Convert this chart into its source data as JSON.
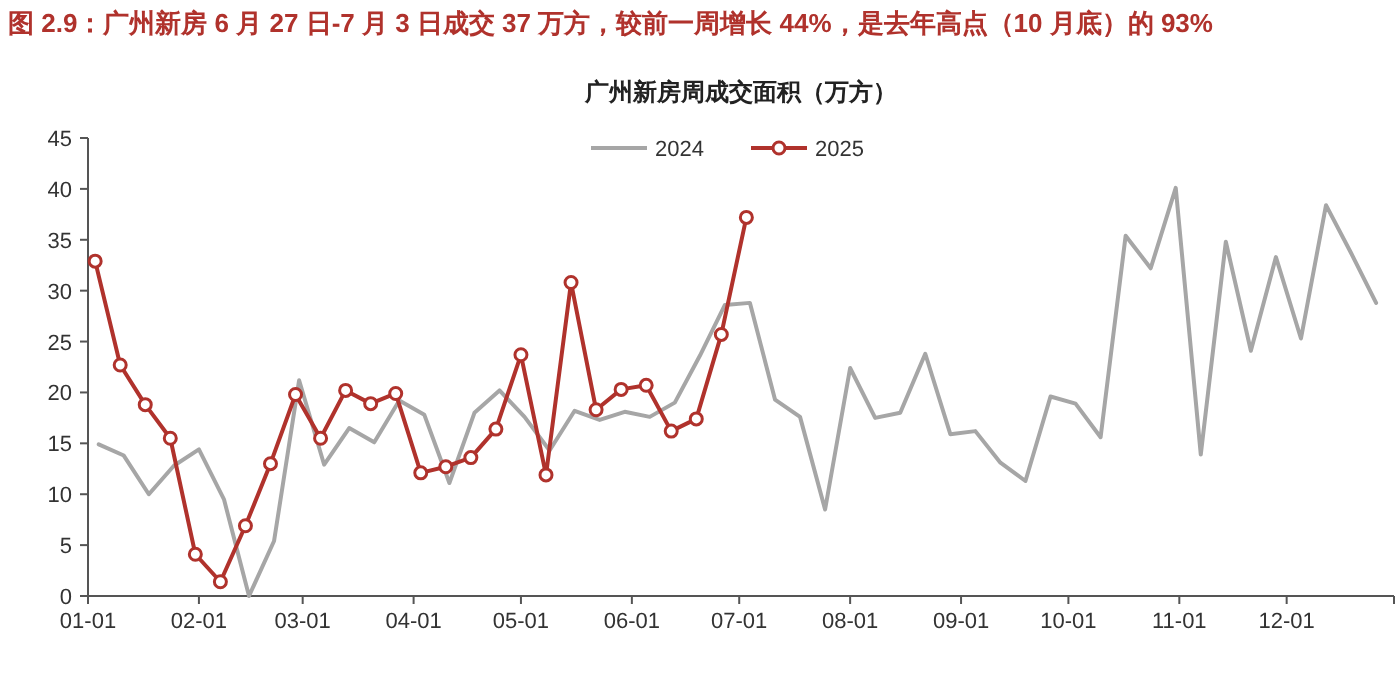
{
  "chart_data": {
    "type": "line",
    "title": "图 2.9：广州新房 6 月 27 日-7 月 3 日成交 37 万方，较前一周增长 44%，是去年高点（10 月底）的 93%",
    "subtitle": "广州新房周成交面积（万方）",
    "series": [
      {
        "name": "2024",
        "color": "#a6a6a6",
        "marker": "none",
        "x": [
          "--01-04",
          "--01-11",
          "--01-18",
          "--01-25",
          "--02-01",
          "--02-08",
          "--02-15",
          "--02-22",
          "--02-29",
          "--03-07",
          "--03-14",
          "--03-21",
          "--03-28",
          "--04-04",
          "--04-11",
          "--04-18",
          "--04-25",
          "--05-02",
          "--05-09",
          "--05-16",
          "--05-23",
          "--05-30",
          "--06-06",
          "--06-13",
          "--06-20",
          "--06-27",
          "--07-04",
          "--07-11",
          "--07-18",
          "--07-25",
          "--08-01",
          "--08-08",
          "--08-15",
          "--08-22",
          "--08-29",
          "--09-05",
          "--09-12",
          "--09-19",
          "--09-26",
          "--10-03",
          "--10-10",
          "--10-17",
          "--10-24",
          "--10-31",
          "--11-07",
          "--11-14",
          "--11-21",
          "--11-28",
          "--12-05",
          "--12-12",
          "--12-19",
          "--12-26"
        ],
        "values": [
          14.9,
          13.8,
          10.0,
          12.8,
          14.4,
          9.5,
          0,
          5.4,
          21.2,
          12.9,
          16.5,
          15.1,
          19.2,
          17.8,
          11.1,
          18.0,
          20.2,
          17.6,
          14.3,
          18.2,
          17.3,
          18.1,
          17.6,
          19.0,
          23.6,
          28.6,
          28.8,
          19.3,
          17.6,
          8.5,
          22.4,
          17.5,
          18.0,
          23.8,
          15.9,
          16.2,
          13.1,
          11.3,
          19.6,
          18.9,
          15.6,
          35.4,
          32.2,
          40.1,
          13.9,
          34.8,
          24.1,
          33.3,
          25.3,
          38.4,
          33.7,
          28.8
        ]
      },
      {
        "name": "2025",
        "color": "#b0322c",
        "marker": "circle",
        "x": [
          "--01-03",
          "--01-10",
          "--01-17",
          "--01-24",
          "--01-31",
          "--02-07",
          "--02-14",
          "--02-21",
          "--02-28",
          "--03-06",
          "--03-13",
          "--03-20",
          "--03-27",
          "--04-03",
          "--04-10",
          "--04-17",
          "--04-24",
          "--05-01",
          "--05-08",
          "--05-15",
          "--05-22",
          "--05-29",
          "--06-05",
          "--06-12",
          "--06-19",
          "--06-26",
          "--07-03"
        ],
        "values": [
          32.9,
          22.7,
          18.8,
          15.5,
          4.1,
          1.4,
          6.9,
          13.0,
          19.8,
          15.5,
          20.2,
          18.9,
          19.9,
          12.1,
          12.7,
          13.6,
          16.4,
          23.7,
          11.9,
          30.8,
          18.3,
          20.3,
          20.7,
          16.2,
          17.4,
          25.7,
          37.2
        ]
      }
    ],
    "xlim": [
      "--01-01",
      "--12-31"
    ],
    "xticks": [
      {
        "value": "--01-01",
        "label": "01-01"
      },
      {
        "value": "--02-01",
        "label": "02-01"
      },
      {
        "value": "--03-01",
        "label": "03-01"
      },
      {
        "value": "--04-01",
        "label": "04-01"
      },
      {
        "value": "--05-01",
        "label": "05-01"
      },
      {
        "value": "--06-01",
        "label": "06-01"
      },
      {
        "value": "--07-01",
        "label": "07-01"
      },
      {
        "value": "--08-01",
        "label": "08-01"
      },
      {
        "value": "--09-01",
        "label": "09-01"
      },
      {
        "value": "--10-01",
        "label": "10-01"
      },
      {
        "value": "--11-01",
        "label": "11-01"
      },
      {
        "value": "--12-01",
        "label": "12-01"
      }
    ],
    "ylim": [
      0,
      45
    ],
    "yticks": [
      0,
      5,
      10,
      15,
      20,
      25,
      30,
      35,
      40,
      45
    ],
    "grid": false,
    "legend": "top"
  }
}
